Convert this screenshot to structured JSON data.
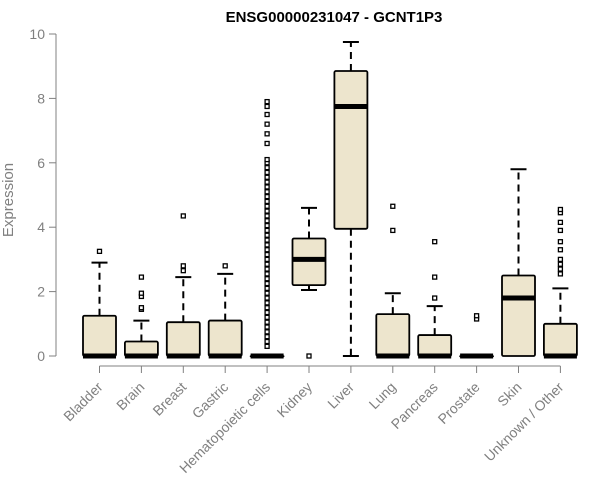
{
  "chart_data": {
    "type": "boxplot",
    "title": "ENSG00000231047 - GCNT1P3",
    "ylabel": "Expression",
    "xlabel": "",
    "ylim": [
      0,
      10
    ],
    "yticks": [
      0,
      2,
      4,
      6,
      8,
      10
    ],
    "categories": [
      "Bladder",
      "Brain",
      "Breast",
      "Gastric",
      "Hematopoietic cells",
      "Kidney",
      "Liver",
      "Lung",
      "Pancreas",
      "Prostate",
      "Skin",
      "Unknown / Other"
    ],
    "boxes": [
      {
        "q1": 0,
        "median": 0,
        "q3": 1.25,
        "whisker_low": 0,
        "whisker_high": 2.9,
        "outliers": [
          3.25
        ]
      },
      {
        "q1": 0,
        "median": 0,
        "q3": 0.45,
        "whisker_low": 0,
        "whisker_high": 1.1,
        "outliers": [
          1.45,
          1.5,
          1.85,
          1.95,
          2.45
        ]
      },
      {
        "q1": 0,
        "median": 0,
        "q3": 1.05,
        "whisker_low": 0,
        "whisker_high": 2.45,
        "outliers": [
          2.65,
          2.8,
          4.35
        ]
      },
      {
        "q1": 0,
        "median": 0,
        "q3": 1.1,
        "whisker_low": 0,
        "whisker_high": 2.55,
        "outliers": [
          2.8
        ]
      },
      {
        "q1": 0,
        "median": 0,
        "q3": 0,
        "whisker_low": 0,
        "whisker_high": 0,
        "outliers": [
          0.3,
          0.45,
          0.6,
          0.75,
          0.9,
          1.05,
          1.2,
          1.35,
          1.5,
          1.65,
          1.8,
          1.95,
          2.1,
          2.25,
          2.4,
          2.55,
          2.7,
          2.85,
          3.0,
          3.15,
          3.3,
          3.45,
          3.6,
          3.75,
          3.9,
          4.05,
          4.2,
          4.35,
          4.5,
          4.65,
          4.8,
          4.95,
          5.1,
          5.25,
          5.4,
          5.55,
          5.7,
          5.85,
          6.0,
          6.1,
          6.6,
          6.9,
          7.2,
          7.5,
          7.75,
          7.9
        ]
      },
      {
        "q1": 2.2,
        "median": 3.0,
        "q3": 3.65,
        "whisker_low": 2.05,
        "whisker_high": 4.6,
        "outliers": [
          0
        ]
      },
      {
        "q1": 3.95,
        "median": 7.75,
        "q3": 8.85,
        "whisker_low": 0,
        "whisker_high": 9.75,
        "outliers": []
      },
      {
        "q1": 0,
        "median": 0,
        "q3": 1.3,
        "whisker_low": 0,
        "whisker_high": 1.95,
        "outliers": [
          3.9,
          4.65
        ]
      },
      {
        "q1": 0,
        "median": 0,
        "q3": 0.65,
        "whisker_low": 0,
        "whisker_high": 1.55,
        "outliers": [
          1.8,
          2.45,
          3.55
        ]
      },
      {
        "q1": 0,
        "median": 0,
        "q3": 0,
        "whisker_low": 0,
        "whisker_high": 0,
        "outliers": [
          1.15,
          1.25
        ]
      },
      {
        "q1": 0,
        "median": 1.8,
        "q3": 2.5,
        "whisker_low": 0,
        "whisker_high": 5.8,
        "outliers": []
      },
      {
        "q1": 0,
        "median": 0,
        "q3": 1.0,
        "whisker_low": 0,
        "whisker_high": 2.1,
        "outliers": [
          2.55,
          2.7,
          2.85,
          3.0,
          3.3,
          3.55,
          3.9,
          4.15,
          4.45,
          4.55
        ]
      }
    ],
    "box_fill": "#ede5cd",
    "box_stroke": "#000000",
    "axis_color": "#808080",
    "grid": false,
    "legend": "none"
  }
}
